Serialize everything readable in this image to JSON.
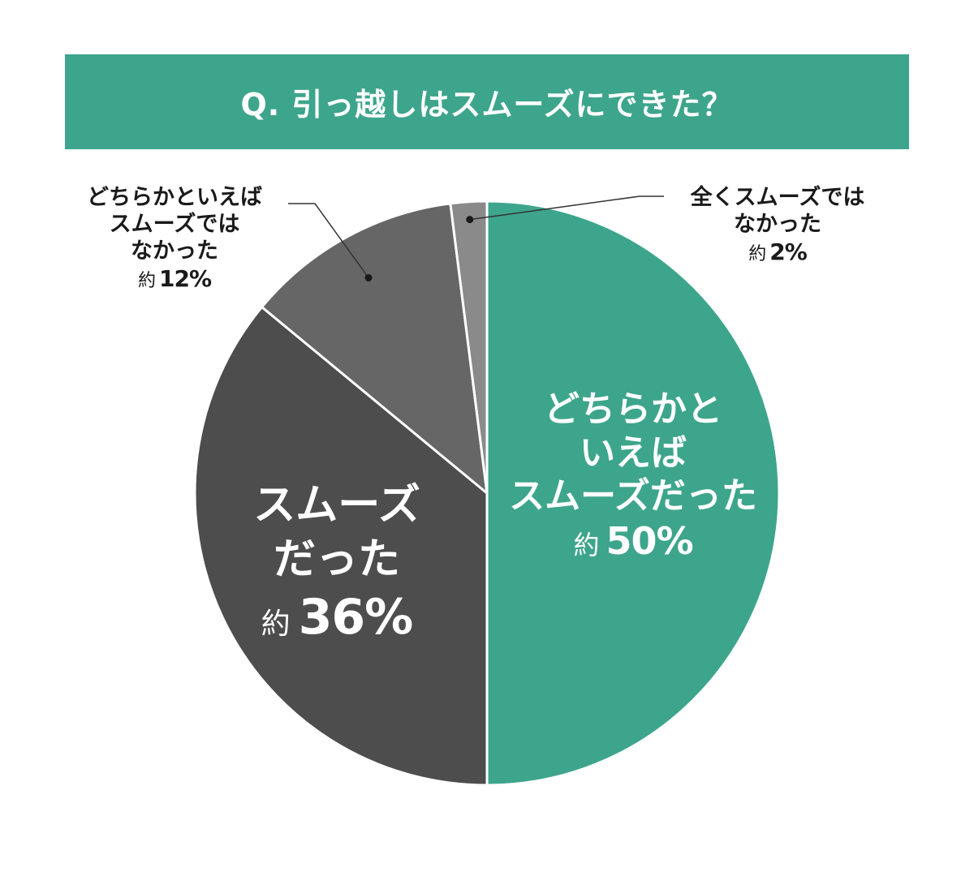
{
  "title": "Q. 引っ越しはスムーズにできた？",
  "chart_data": {
    "type": "pie",
    "title": "Q. 引っ越しはスムーズにできた？",
    "start_angle_deg": 0,
    "direction": "clockwise",
    "slices": [
      {
        "label": "どちらかといえばスムーズだった",
        "value": 50,
        "display": "約50%",
        "color": "#3da58c",
        "label_lines": [
          "どちらかと",
          "いえば",
          "スムーズだった"
        ],
        "prefix": "約",
        "pct": "50%"
      },
      {
        "label": "スムーズだった",
        "value": 36,
        "display": "約36%",
        "color": "#4d4d4d",
        "label_lines": [
          "スムーズ",
          "だった"
        ],
        "prefix": "約",
        "pct": "36%"
      },
      {
        "label": "どちらかといえばスムーズではなかった",
        "value": 12,
        "display": "約12%",
        "color": "#666666",
        "label_lines": [
          "どちらかといえば",
          "スムーズでは",
          "なかった"
        ],
        "prefix": "約",
        "pct": "12%"
      },
      {
        "label": "全くスムーズではなかった",
        "value": 2,
        "display": "約2%",
        "color": "#8a8a8a",
        "label_lines": [
          "全くスムーズでは",
          "なかった"
        ],
        "prefix": "約",
        "pct": "2%"
      }
    ],
    "label_positions": [
      "inside",
      "inside",
      "outside-top-left",
      "outside-top-right"
    ]
  }
}
